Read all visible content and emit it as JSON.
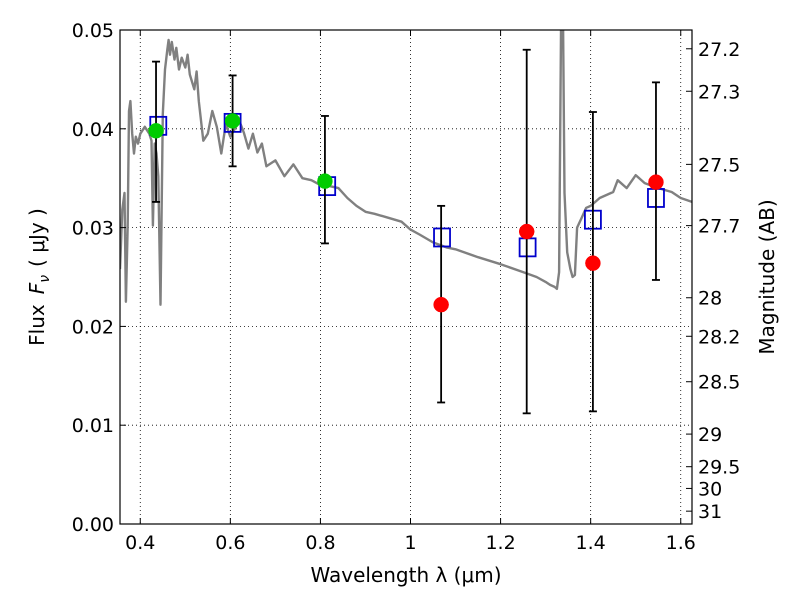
{
  "chart_data": {
    "type": "scatter",
    "xlabel": "Wavelength  λ (μm)",
    "ylabel_left": "Flux  Fν ( μJy )",
    "ylabel_left_prefix": "Flux",
    "ylabel_left_symbol": "F",
    "ylabel_left_subscript": "ν",
    "ylabel_left_unit": "( μJy )",
    "ylabel_right": "Magnitude (AB)",
    "xlim": [
      0.355,
      1.625
    ],
    "ylim": [
      0.0,
      0.05
    ],
    "grid": true,
    "x_ticks": [
      0.4,
      0.6,
      0.8,
      1.0,
      1.2,
      1.4,
      1.6
    ],
    "x_tick_labels": [
      "0.4",
      "0.6",
      "0.8",
      "1",
      "1.2",
      "1.4",
      "1.6"
    ],
    "y_ticks": [
      0.0,
      0.01,
      0.02,
      0.03,
      0.04,
      0.05
    ],
    "y_tick_labels": [
      "0.00",
      "0.01",
      "0.02",
      "0.03",
      "0.04",
      "0.05"
    ],
    "right_ticks": [
      {
        "flux": 0.0481,
        "label": "27.2"
      },
      {
        "flux": 0.0438,
        "label": "27.3"
      },
      {
        "flux": 0.0364,
        "label": "27.5"
      },
      {
        "flux": 0.0302,
        "label": "27.7"
      },
      {
        "flux": 0.0229,
        "label": "28"
      },
      {
        "flux": 0.019,
        "label": "28.2"
      },
      {
        "flux": 0.0144,
        "label": "28.5"
      },
      {
        "flux": 0.0091,
        "label": "29"
      },
      {
        "flux": 0.0058,
        "label": "29.5"
      },
      {
        "flux": 0.0036,
        "label": "30"
      },
      {
        "flux": 0.0013,
        "label": "31"
      }
    ],
    "series": [
      {
        "kind": "line",
        "color": "#808080",
        "x": [
          0.355,
          0.36,
          0.365,
          0.368,
          0.372,
          0.375,
          0.378,
          0.382,
          0.386,
          0.39,
          0.395,
          0.4,
          0.41,
          0.42,
          0.425,
          0.428,
          0.432,
          0.436,
          0.44,
          0.445,
          0.45,
          0.455,
          0.46,
          0.463,
          0.466,
          0.47,
          0.476,
          0.48,
          0.486,
          0.492,
          0.5,
          0.505,
          0.51,
          0.52,
          0.525,
          0.53,
          0.54,
          0.55,
          0.56,
          0.57,
          0.58,
          0.59,
          0.6,
          0.61,
          0.62,
          0.63,
          0.64,
          0.65,
          0.66,
          0.67,
          0.68,
          0.7,
          0.72,
          0.74,
          0.76,
          0.78,
          0.8,
          0.82,
          0.84,
          0.86,
          0.88,
          0.9,
          0.92,
          0.95,
          0.98,
          1.0,
          1.02,
          1.05,
          1.08,
          1.1,
          1.15,
          1.2,
          1.25,
          1.28,
          1.3,
          1.31,
          1.32,
          1.325,
          1.33,
          1.335,
          1.338,
          1.342,
          1.348,
          1.355,
          1.36,
          1.365,
          1.37,
          1.38,
          1.39,
          1.4,
          1.42,
          1.45,
          1.46,
          1.48,
          1.5,
          1.52,
          1.55,
          1.58,
          1.6,
          1.625
        ],
        "y": [
          0.0258,
          0.0318,
          0.0335,
          0.0225,
          0.0302,
          0.0418,
          0.0428,
          0.0395,
          0.0375,
          0.0392,
          0.0385,
          0.0395,
          0.0402,
          0.0395,
          0.0388,
          0.0302,
          0.0385,
          0.0375,
          0.0352,
          0.0222,
          0.0415,
          0.046,
          0.048,
          0.049,
          0.0475,
          0.0488,
          0.047,
          0.0482,
          0.046,
          0.0472,
          0.0462,
          0.0475,
          0.0455,
          0.044,
          0.0458,
          0.0428,
          0.0388,
          0.0395,
          0.0418,
          0.0402,
          0.0375,
          0.0405,
          0.0392,
          0.04,
          0.0408,
          0.0396,
          0.038,
          0.0395,
          0.0376,
          0.0385,
          0.0362,
          0.0368,
          0.0352,
          0.0364,
          0.035,
          0.0348,
          0.0343,
          0.0342,
          0.034,
          0.033,
          0.0322,
          0.0316,
          0.0314,
          0.031,
          0.0306,
          0.0298,
          0.0293,
          0.0285,
          0.028,
          0.0278,
          0.027,
          0.0263,
          0.0255,
          0.025,
          0.0245,
          0.0242,
          0.024,
          0.0238,
          0.0255,
          0.055,
          0.055,
          0.0335,
          0.0275,
          0.0258,
          0.025,
          0.0252,
          0.03,
          0.031,
          0.032,
          0.0322,
          0.033,
          0.0336,
          0.0348,
          0.034,
          0.0353,
          0.0345,
          0.034,
          0.0336,
          0.033,
          0.0326
        ]
      },
      {
        "kind": "open-square",
        "color": "#0000cc",
        "x": [
          0.44,
          0.605,
          0.815,
          1.07,
          1.26,
          1.405,
          1.545
        ],
        "y": [
          0.0403,
          0.0406,
          0.0342,
          0.029,
          0.028,
          0.0308,
          0.033
        ]
      },
      {
        "kind": "filled-circle",
        "color": "#00cc00",
        "x": [
          0.435,
          0.605,
          0.81
        ],
        "y": [
          0.0398,
          0.0408,
          0.0347
        ]
      },
      {
        "kind": "filled-circle",
        "color": "#ff0000",
        "x": [
          1.068,
          1.258,
          1.405,
          1.545
        ],
        "y": [
          0.0222,
          0.0296,
          0.0264,
          0.0346
        ]
      },
      {
        "kind": "errorbar",
        "color": "#000000",
        "x": [
          0.435,
          0.605,
          0.81,
          1.068,
          1.258,
          1.405,
          1.545
        ],
        "ylow": [
          0.0326,
          0.0362,
          0.0284,
          0.0123,
          0.0112,
          0.0114,
          0.0247
        ],
        "yhigh": [
          0.0468,
          0.0454,
          0.0413,
          0.0322,
          0.048,
          0.0417,
          0.0447
        ]
      }
    ]
  }
}
